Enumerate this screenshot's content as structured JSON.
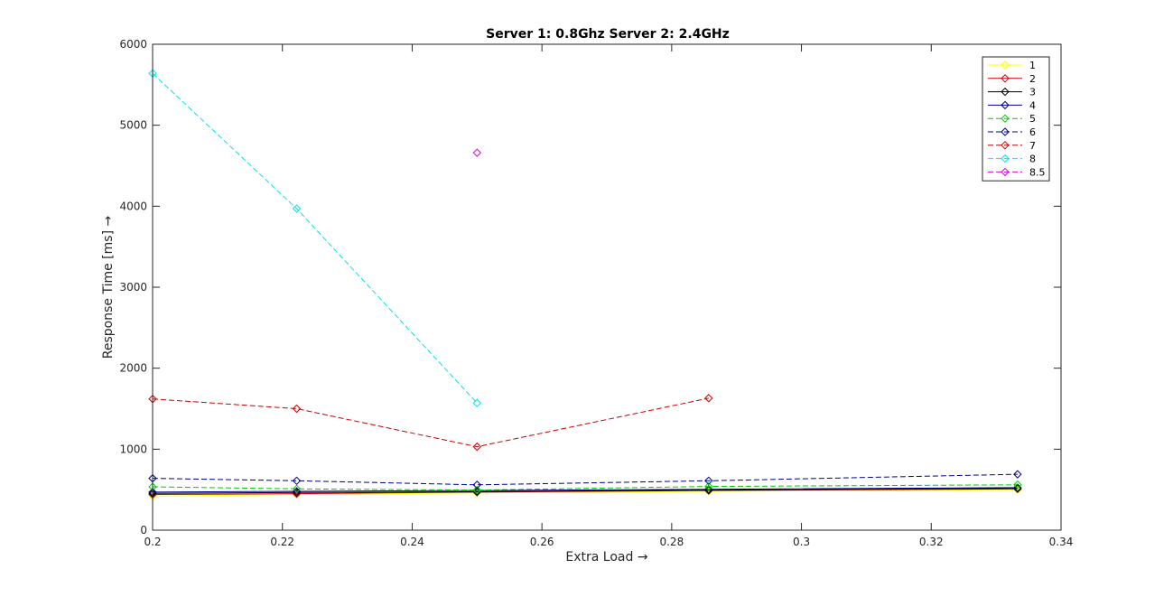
{
  "chart_data": {
    "type": "line",
    "title": "Server 1: 0.8Ghz Server 2: 2.4GHz",
    "xlabel": "Extra Load →",
    "ylabel": "Response Time [ms] →",
    "xlim": [
      0.2,
      0.34
    ],
    "ylim": [
      0,
      6000
    ],
    "xticks": [
      0.2,
      0.22,
      0.24,
      0.26,
      0.28,
      0.3,
      0.32,
      0.34
    ],
    "xtick_labels": [
      "0.2",
      "0.22",
      "0.24",
      "0.26",
      "0.28",
      "0.3",
      "0.32",
      "0.34"
    ],
    "yticks": [
      0,
      1000,
      2000,
      3000,
      4000,
      5000,
      6000
    ],
    "ytick_labels": [
      "0",
      "1000",
      "2000",
      "3000",
      "4000",
      "5000",
      "6000"
    ],
    "grid": false,
    "legend_position": "top-right",
    "marker": "diamond",
    "series": [
      {
        "name": "1",
        "color": "#ffff00",
        "dash": "solid",
        "x": [
          0.2,
          0.2222,
          0.25,
          0.2857,
          0.3333
        ],
        "y": [
          420,
          440,
          460,
          480,
          500
        ]
      },
      {
        "name": "2",
        "color": "#cc0000",
        "dash": "solid",
        "x": [
          0.2,
          0.2222,
          0.25,
          0.2857,
          0.3333
        ],
        "y": [
          440,
          450,
          470,
          490,
          510
        ]
      },
      {
        "name": "3",
        "color": "#000000",
        "dash": "solid",
        "x": [
          0.2,
          0.2222,
          0.25,
          0.2857,
          0.3333
        ],
        "y": [
          455,
          465,
          475,
          495,
          515
        ]
      },
      {
        "name": "4",
        "color": "#00008b",
        "dash": "solid",
        "x": [
          0.2,
          0.2222,
          0.25,
          0.2857,
          0.3333
        ],
        "y": [
          470,
          480,
          490,
          505,
          525
        ]
      },
      {
        "name": "5",
        "color": "#00cc00",
        "dash": "dashed",
        "x": [
          0.2,
          0.2222,
          0.25,
          0.2857,
          0.3333
        ],
        "y": [
          535,
          510,
          495,
          540,
          560
        ]
      },
      {
        "name": "6",
        "color": "#00008b",
        "dash": "dashed",
        "x": [
          0.2,
          0.2222,
          0.25,
          0.2857,
          0.3333
        ],
        "y": [
          640,
          610,
          560,
          610,
          690
        ]
      },
      {
        "name": "7",
        "color": "#cc0000",
        "dash": "dashed",
        "x": [
          0.2,
          0.2222,
          0.25,
          0.2857
        ],
        "y": [
          1620,
          1500,
          1030,
          1630
        ]
      },
      {
        "name": "8",
        "color": "#00e5e5",
        "dash": "dashed",
        "x": [
          0.2,
          0.2222,
          0.25
        ],
        "y": [
          5640,
          3970,
          1570
        ]
      },
      {
        "name": "8.5",
        "color": "#e000e0",
        "dash": "dashed",
        "x": [
          0.25
        ],
        "y": [
          4660
        ]
      }
    ]
  }
}
